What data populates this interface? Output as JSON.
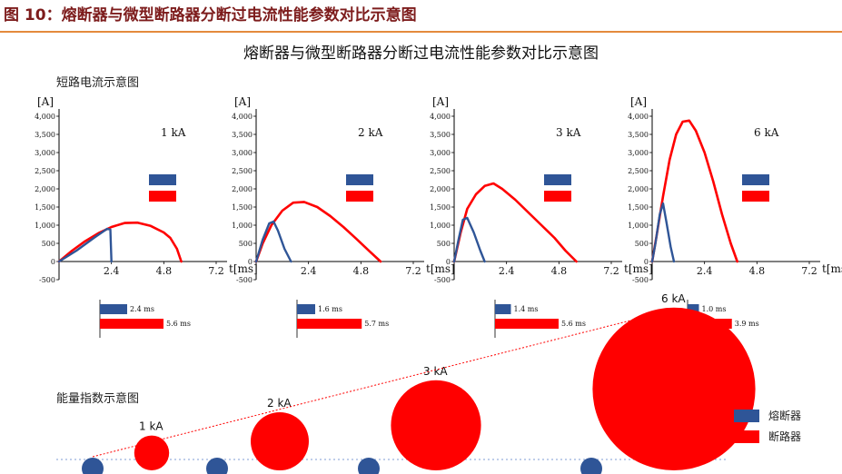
{
  "figure_title": "图 10：熔断器与微型断路器分断过电流性能参数对比示意图",
  "chart_title": "熔断器与微型断路器分断过电流性能参数对比示意图",
  "section_short_circuit": "短路电流示意图",
  "section_energy": "能量指数示意图",
  "colors": {
    "fuse": "#2f5597",
    "breaker": "#ff0000",
    "rule": "#e48a3c",
    "title": "#7d1c1c"
  },
  "legend": {
    "fuse": "熔断器",
    "breaker": "断路器"
  },
  "chart_data": [
    {
      "type": "line",
      "panel": 1,
      "label": "1 kA",
      "y_unit": "[A]",
      "x_unit": "t[ms]",
      "y_ticks": [
        "-500",
        "0",
        "500",
        "1,000",
        "1,500",
        "2,000",
        "2,500",
        "3,000",
        "3,500",
        "4,000"
      ],
      "x_ticks": [
        "2.4",
        "4.8",
        "7.2"
      ],
      "xlim": [
        0,
        7.2
      ],
      "ylim": [
        -500,
        4200
      ],
      "series": [
        {
          "key": "breaker",
          "x": [
            0,
            0.6,
            1.2,
            1.8,
            2.4,
            3.0,
            3.6,
            4.2,
            4.8,
            5.1,
            5.4,
            5.6
          ],
          "y": [
            0,
            300,
            560,
            780,
            950,
            1060,
            1070,
            980,
            800,
            650,
            350,
            0
          ]
        },
        {
          "key": "fuse",
          "x": [
            0,
            0.8,
            1.6,
            2.2,
            2.35,
            2.4
          ],
          "y": [
            0,
            300,
            650,
            900,
            880,
            0
          ]
        }
      ],
      "bars": [
        {
          "key": "fuse",
          "value": 2.4,
          "label": "2.4 ms"
        },
        {
          "key": "breaker",
          "value": 5.6,
          "label": "5.6 ms"
        }
      ]
    },
    {
      "type": "line",
      "panel": 2,
      "label": "2 kA",
      "y_unit": "[A]",
      "x_unit": "t[ms]",
      "y_ticks": [
        "-500",
        "0",
        "500",
        "1,000",
        "1,500",
        "2,000",
        "2,500",
        "3,000",
        "3,500",
        "4,000"
      ],
      "x_ticks": [
        "2.4",
        "4.8",
        "7.2"
      ],
      "xlim": [
        0,
        7.2
      ],
      "ylim": [
        -500,
        4200
      ],
      "series": [
        {
          "key": "breaker",
          "x": [
            0,
            0.3,
            0.7,
            1.2,
            1.7,
            2.2,
            2.8,
            3.4,
            4.0,
            4.6,
            5.2,
            5.7
          ],
          "y": [
            0,
            500,
            1000,
            1400,
            1620,
            1640,
            1500,
            1250,
            950,
            620,
            280,
            0
          ]
        },
        {
          "key": "fuse",
          "x": [
            0,
            0.3,
            0.6,
            0.8,
            1.0,
            1.3,
            1.6
          ],
          "y": [
            0,
            600,
            1050,
            1100,
            850,
            350,
            0
          ]
        }
      ],
      "bars": [
        {
          "key": "fuse",
          "value": 1.6,
          "label": "1.6 ms"
        },
        {
          "key": "breaker",
          "value": 5.7,
          "label": "5.7 ms"
        }
      ]
    },
    {
      "type": "line",
      "panel": 3,
      "label": "3 kA",
      "y_unit": "[A]",
      "x_unit": "t[ms]",
      "y_ticks": [
        "-500",
        "0",
        "500",
        "1,000",
        "1,500",
        "2,000",
        "2,500",
        "3,000",
        "3,500",
        "4,000"
      ],
      "x_ticks": [
        "2.4",
        "4.8",
        "7.2"
      ],
      "xlim": [
        0,
        7.2
      ],
      "ylim": [
        -500,
        4200
      ],
      "series": [
        {
          "key": "breaker",
          "x": [
            0,
            0.3,
            0.6,
            1.0,
            1.4,
            1.8,
            2.2,
            2.8,
            3.4,
            4.0,
            4.6,
            5.1,
            5.6
          ],
          "y": [
            0,
            800,
            1450,
            1850,
            2080,
            2150,
            2000,
            1700,
            1350,
            1000,
            650,
            300,
            0
          ]
        },
        {
          "key": "fuse",
          "x": [
            0,
            0.2,
            0.4,
            0.6,
            0.9,
            1.2,
            1.4
          ],
          "y": [
            0,
            600,
            1150,
            1200,
            800,
            300,
            0
          ]
        }
      ],
      "bars": [
        {
          "key": "fuse",
          "value": 1.4,
          "label": "1.4 ms"
        },
        {
          "key": "breaker",
          "value": 5.6,
          "label": "5.6 ms"
        }
      ]
    },
    {
      "type": "line",
      "panel": 4,
      "label": "6 kA",
      "y_unit": "[A]",
      "x_unit": "t[ms]",
      "y_ticks": [
        "-500",
        "0",
        "500",
        "1,000",
        "1,500",
        "2,000",
        "2,500",
        "3,000",
        "3,500",
        "4,000"
      ],
      "x_ticks": [
        "2.4",
        "4.8",
        "7.2"
      ],
      "xlim": [
        0,
        7.2
      ],
      "ylim": [
        -500,
        4200
      ],
      "series": [
        {
          "key": "breaker",
          "x": [
            0,
            0.2,
            0.5,
            0.8,
            1.1,
            1.4,
            1.7,
            2.0,
            2.4,
            2.8,
            3.2,
            3.6,
            3.9
          ],
          "y": [
            0,
            700,
            1800,
            2800,
            3500,
            3850,
            3880,
            3600,
            3000,
            2200,
            1300,
            500,
            0
          ]
        },
        {
          "key": "fuse",
          "x": [
            0,
            0.15,
            0.35,
            0.5,
            0.65,
            0.85,
            1.0
          ],
          "y": [
            0,
            500,
            1300,
            1600,
            1100,
            400,
            0
          ]
        }
      ],
      "bars": [
        {
          "key": "fuse",
          "value": 1.0,
          "label": "1.0 ms"
        },
        {
          "key": "breaker",
          "value": 3.9,
          "label": "3.9 ms"
        }
      ]
    },
    {
      "type": "scatter",
      "name": "energy",
      "categories": [
        "1 kA",
        "2 kA",
        "3 kA",
        "6 kA"
      ],
      "series": [
        {
          "key": "fuse",
          "values": [
            1,
            1,
            1,
            1
          ]
        },
        {
          "key": "breaker",
          "values": [
            1.2,
            2.0,
            3.1,
            5.6
          ]
        }
      ]
    }
  ]
}
